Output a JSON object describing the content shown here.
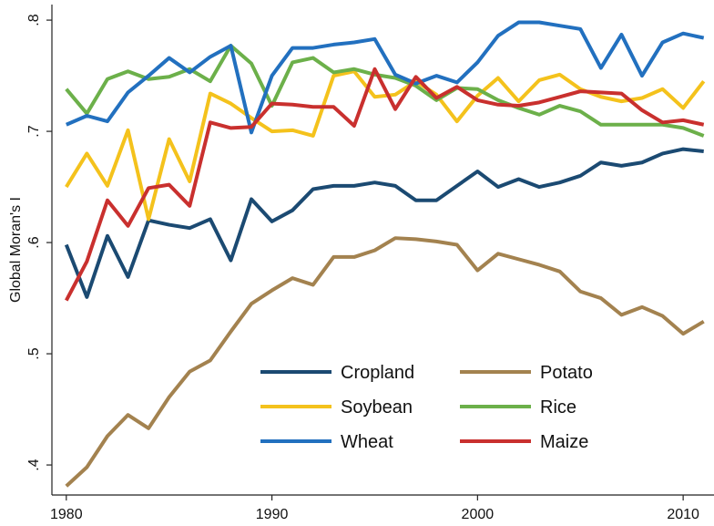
{
  "chart_data": {
    "type": "line",
    "y_label": "Global Moran's I",
    "x": [
      1980,
      1981,
      1982,
      1983,
      1984,
      1985,
      1986,
      1987,
      1988,
      1989,
      1990,
      1991,
      1992,
      1993,
      1994,
      1995,
      1996,
      1997,
      1998,
      1999,
      2000,
      2001,
      2002,
      2003,
      2004,
      2005,
      2006,
      2007,
      2008,
      2009,
      2010,
      2011
    ],
    "xlim": [
      1979.3,
      2011.5
    ],
    "xticks": [
      1980,
      1990,
      2000,
      2010
    ],
    "ylim": [
      0.373,
      0.814
    ],
    "yticks": [
      {
        "value": 0.4,
        "label": ".4"
      },
      {
        "value": 0.5,
        "label": ".5"
      },
      {
        "value": 0.6,
        "label": ".6"
      },
      {
        "value": 0.7,
        "label": ".7"
      },
      {
        "value": 0.8,
        "label": ".8"
      }
    ],
    "grid": false,
    "series": [
      {
        "name": "Cropland",
        "color": "#1b4a72",
        "values": [
          0.598,
          0.551,
          0.606,
          0.569,
          0.62,
          0.616,
          0.613,
          0.621,
          0.584,
          0.639,
          0.619,
          0.629,
          0.648,
          0.651,
          0.651,
          0.654,
          0.651,
          0.638,
          0.638,
          0.651,
          0.664,
          0.65,
          0.657,
          0.65,
          0.654,
          0.66,
          0.672,
          0.669,
          0.672,
          0.68,
          0.684,
          0.682
        ]
      },
      {
        "name": "Potato",
        "color": "#a3824f",
        "values": [
          0.381,
          0.398,
          0.426,
          0.445,
          0.433,
          0.461,
          0.484,
          0.494,
          0.52,
          0.545,
          0.557,
          0.568,
          0.562,
          0.587,
          0.587,
          0.593,
          0.604,
          0.603,
          0.601,
          0.598,
          0.575,
          0.59,
          0.585,
          0.58,
          0.574,
          0.556,
          0.55,
          0.535,
          0.542,
          0.534,
          0.518,
          0.529
        ]
      },
      {
        "name": "Soybean",
        "color": "#f4c21c",
        "values": [
          0.65,
          0.68,
          0.651,
          0.701,
          0.621,
          0.693,
          0.655,
          0.734,
          0.725,
          0.712,
          0.7,
          0.701,
          0.696,
          0.75,
          0.754,
          0.731,
          0.733,
          0.745,
          0.733,
          0.709,
          0.732,
          0.748,
          0.727,
          0.746,
          0.751,
          0.738,
          0.731,
          0.727,
          0.73,
          0.738,
          0.721,
          0.745
        ]
      },
      {
        "name": "Rice",
        "color": "#6cb04a",
        "values": [
          0.738,
          0.716,
          0.747,
          0.754,
          0.747,
          0.749,
          0.756,
          0.745,
          0.777,
          0.761,
          0.723,
          0.762,
          0.766,
          0.753,
          0.756,
          0.751,
          0.748,
          0.741,
          0.728,
          0.739,
          0.738,
          0.728,
          0.721,
          0.715,
          0.723,
          0.718,
          0.706,
          0.706,
          0.706,
          0.706,
          0.703,
          0.696
        ]
      },
      {
        "name": "Wheat",
        "color": "#2270bf",
        "values": [
          0.706,
          0.714,
          0.709,
          0.735,
          0.75,
          0.766,
          0.753,
          0.767,
          0.777,
          0.699,
          0.75,
          0.775,
          0.775,
          0.778,
          0.78,
          0.783,
          0.751,
          0.743,
          0.75,
          0.744,
          0.762,
          0.786,
          0.798,
          0.798,
          0.795,
          0.792,
          0.757,
          0.787,
          0.75,
          0.78,
          0.788,
          0.784
        ]
      },
      {
        "name": "Maize",
        "color": "#c9302e",
        "values": [
          0.548,
          0.583,
          0.638,
          0.615,
          0.649,
          0.652,
          0.633,
          0.708,
          0.703,
          0.704,
          0.725,
          0.724,
          0.722,
          0.722,
          0.705,
          0.756,
          0.72,
          0.749,
          0.73,
          0.74,
          0.728,
          0.724,
          0.723,
          0.726,
          0.731,
          0.736,
          0.735,
          0.734,
          0.719,
          0.708,
          0.71,
          0.706
        ]
      }
    ]
  }
}
